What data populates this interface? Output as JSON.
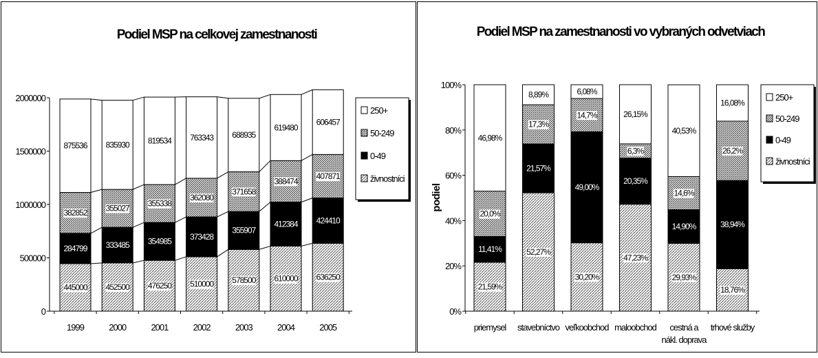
{
  "colors": {
    "zivnostnici": "#c4c4c4",
    "c0_49": "#000000",
    "c50_249": "#b4b4b4",
    "c250": "#ffffff",
    "axis": "#000000"
  },
  "chart_data": [
    {
      "type": "bar",
      "stacked": true,
      "title": "Podiel MSP na celkovej zamestnanosti",
      "categories": [
        "1999",
        "2000",
        "2001",
        "2002",
        "2003",
        "2004",
        "2005"
      ],
      "yticks": [
        "0",
        "500000",
        "1000000",
        "1500000",
        "2000000"
      ],
      "ylim": [
        0,
        2000000
      ],
      "legend_position": "right",
      "series": [
        {
          "name": "živnostníci",
          "values": [
            445000,
            452500,
            476250,
            510000,
            578500,
            610000,
            636250
          ],
          "labels": [
            "445000",
            "452500",
            "476250",
            "510000",
            "578500",
            "610000",
            "636250"
          ]
        },
        {
          "name": "0-49",
          "values": [
            284799,
            333485,
            354985,
            373428,
            355907,
            412384,
            424410
          ],
          "labels": [
            "284799",
            "333485",
            "354985",
            "373428",
            "355907",
            "412384",
            "424410"
          ]
        },
        {
          "name": "50-249",
          "values": [
            382852,
            355027,
            355338,
            362080,
            371658,
            388474,
            407871
          ],
          "labels": [
            "382852",
            "355027",
            "355338",
            "362080",
            "371658",
            "388474",
            "407871"
          ]
        },
        {
          "name": "250+",
          "values": [
            875536,
            835930,
            819534,
            763343,
            688935,
            619480,
            606457
          ],
          "labels": [
            "875536",
            "835930",
            "819534",
            "763343",
            "688935",
            "619480",
            "606457"
          ]
        }
      ]
    },
    {
      "type": "bar",
      "stacked": true,
      "percent": true,
      "title": "Podiel MSP na zamestnanosti vo vybraných odvetviach",
      "ylabel": "podiel",
      "categories": [
        [
          "priemysel"
        ],
        [
          "stavebníctvo"
        ],
        [
          "veľkoobchod"
        ],
        [
          "maloobchod"
        ],
        [
          "cestná a",
          "nákl. doprava"
        ],
        [
          "trhové služby"
        ]
      ],
      "yticks": [
        "0%",
        "20%",
        "40%",
        "60%",
        "80%",
        "100%"
      ],
      "ylim": [
        0,
        100
      ],
      "legend_position": "right",
      "series": [
        {
          "name": "živnostníci",
          "values": [
            21.59,
            52.27,
            30.2,
            47.23,
            29.93,
            18.76
          ],
          "labels": [
            "21,59%",
            "52,27%",
            "30,20%",
            "47,23%",
            "29,93%",
            "18,76%"
          ]
        },
        {
          "name": "0-49",
          "values": [
            11.41,
            21.57,
            49.0,
            20.35,
            14.9,
            38.94
          ],
          "labels": [
            "11,41%",
            "21,57%",
            "49,00%",
            "20,35%",
            "14,90%",
            "38,94%"
          ]
        },
        {
          "name": "50-249",
          "values": [
            20.0,
            17.3,
            14.7,
            6.3,
            14.6,
            26.2
          ],
          "labels": [
            "20,0%",
            "17,3%",
            "14,7%",
            "6,3%",
            "14,6%",
            "26,2%"
          ]
        },
        {
          "name": "250+",
          "values": [
            46.98,
            8.89,
            6.08,
            26.15,
            40.53,
            16.08
          ],
          "labels": [
            "46,98%",
            "8,89%",
            "6,08%",
            "26,15%",
            "40,53%",
            "16,08%"
          ]
        }
      ]
    }
  ]
}
